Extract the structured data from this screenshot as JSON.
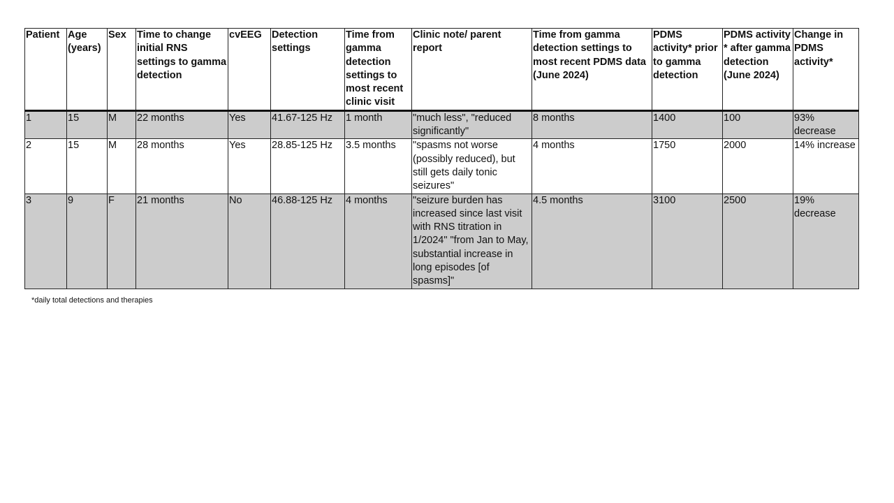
{
  "table": {
    "headers": [
      "Patient",
      "Age (years)",
      "Sex",
      "Time to change initial RNS settings to gamma detection",
      "cvEEG",
      "Detection settings",
      "Time from gamma detection settings to most recent clinic visit",
      "Clinic note/ parent report",
      "Time from gamma detection settings to most recent PDMS data (June 2024)",
      "PDMS activity* prior to gamma detection",
      "PDMS activity * after gamma detection (June 2024)",
      "Change in PDMS activity*"
    ],
    "rows": [
      [
        "1",
        "15",
        "M",
        "22 months",
        "Yes",
        "41.67-125 Hz",
        "1 month",
        "\"much less\", \"reduced significantly\"",
        "8 months",
        "1400",
        "100",
        "93% decrease"
      ],
      [
        "2",
        "15",
        "M",
        "28 months",
        "Yes",
        "28.85-125 Hz",
        "3.5 months",
        "\"spasms not worse (possibly reduced), but still gets daily tonic seizures\"",
        "4 months",
        "1750",
        "2000",
        "14% increase"
      ],
      [
        "3",
        "9",
        "F",
        "21 months",
        "No",
        "46.88-125 Hz",
        "4 months",
        "\"seizure burden has increased since last visit with RNS titration in 1/2024\" \"from Jan to May, substantial increase in long episodes [of spasms]\"",
        "4.5 months",
        "3100",
        "2500",
        "19% decrease"
      ]
    ],
    "shaded_row_color": "#cccccc"
  },
  "footnote": "*daily total detections and therapies"
}
